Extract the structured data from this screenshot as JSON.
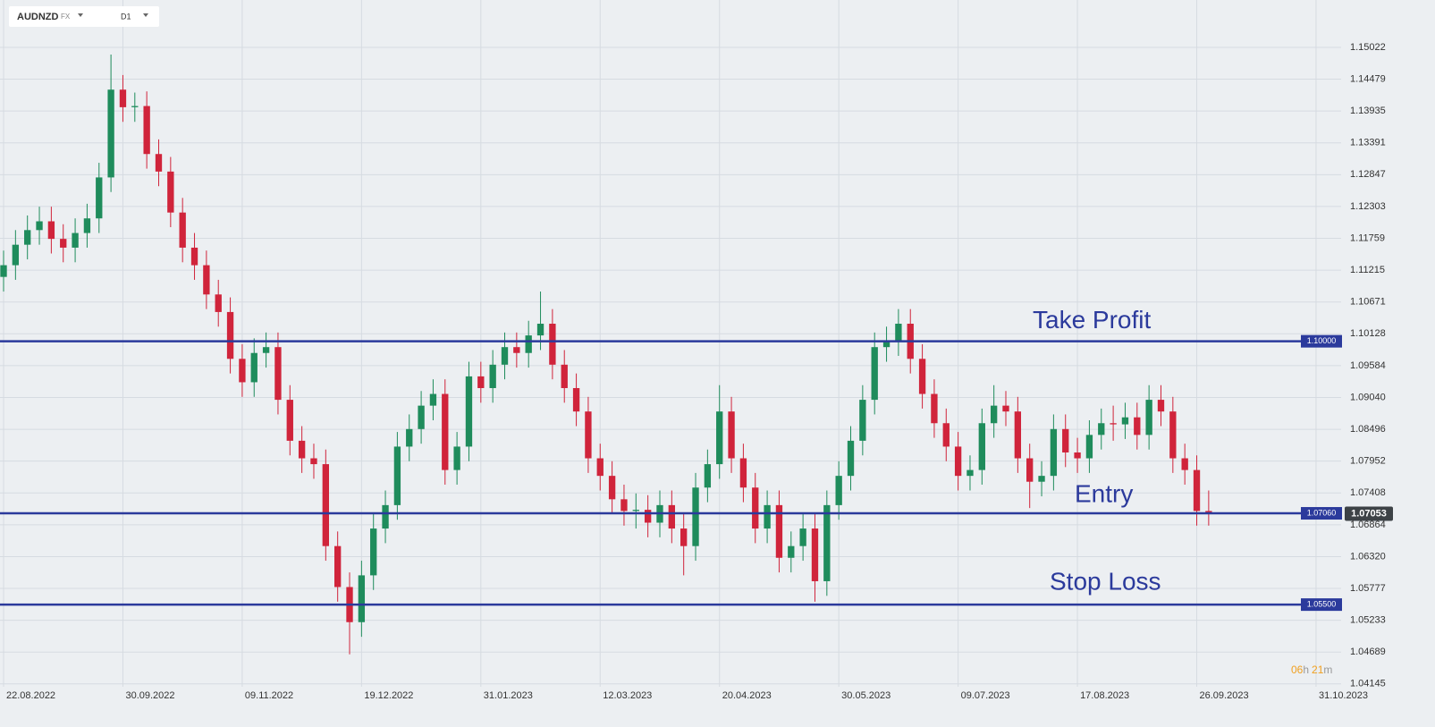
{
  "header": {
    "symbol": "AUDNZD",
    "market": "FX",
    "timeframe": "D1"
  },
  "countdown": {
    "hours": "06",
    "h": "h",
    "minutes": "21",
    "m": "m"
  },
  "chart_data": {
    "type": "candlestick",
    "up_color": "#1f8c5c",
    "down_color": "#d0243b",
    "grid": true,
    "ylim": [
      1.04096,
      1.15832
    ],
    "yticks": [
      1.15022,
      1.14479,
      1.13935,
      1.13391,
      1.12847,
      1.12303,
      1.11759,
      1.11215,
      1.10671,
      1.10128,
      1.09584,
      {
        "value": 1.0904,
        "label": "1.09040"
      },
      1.08496,
      1.07952,
      1.07408,
      1.06864,
      {
        "value": 1.0632,
        "label": "1.06320"
      },
      1.05777,
      1.05233,
      1.04689,
      1.04145
    ],
    "xlim": [
      -0.3,
      112.1
    ],
    "xticks": [
      {
        "value": 0,
        "label": "22.08.2022"
      },
      {
        "value": 10,
        "label": "30.09.2022"
      },
      {
        "value": 20,
        "label": "09.11.2022"
      },
      {
        "value": 30,
        "label": "19.12.2022"
      },
      {
        "value": 40,
        "label": "31.01.2023"
      },
      {
        "value": 50,
        "label": "12.03.2023"
      },
      {
        "value": 60,
        "label": "20.04.2023"
      },
      {
        "value": 70,
        "label": "30.05.2023"
      },
      {
        "value": 80,
        "label": "09.07.2023"
      },
      {
        "value": 90,
        "label": "17.08.2023"
      },
      {
        "value": 100,
        "label": "26.09.2023"
      },
      {
        "value": 110,
        "label": "31.10.2023"
      }
    ],
    "levels": [
      {
        "name": "Take Profit",
        "value": 1.1,
        "label": "1.10000",
        "color": "#2b3a9c"
      },
      {
        "name": "Entry",
        "value": 1.0706,
        "label": "1.07060",
        "color": "#2b3a9c"
      },
      {
        "name": "Stop Loss",
        "value": 1.055,
        "label": "1.05500",
        "color": "#2b3a9c"
      }
    ],
    "current_price": 1.07053,
    "candles": [
      [
        1.111,
        1.1155,
        1.1085,
        1.113
      ],
      [
        1.113,
        1.119,
        1.1105,
        1.1165
      ],
      [
        1.1165,
        1.1215,
        1.114,
        1.119
      ],
      [
        1.119,
        1.123,
        1.1165,
        1.1205
      ],
      [
        1.1205,
        1.123,
        1.115,
        1.1175
      ],
      [
        1.1175,
        1.12,
        1.1135,
        1.116
      ],
      [
        1.116,
        1.121,
        1.1135,
        1.1185
      ],
      [
        1.1185,
        1.1235,
        1.116,
        1.121
      ],
      [
        1.121,
        1.1305,
        1.1185,
        1.128
      ],
      [
        1.128,
        1.149,
        1.1255,
        1.143
      ],
      [
        1.143,
        1.1455,
        1.1375,
        1.14
      ],
      [
        1.14,
        1.1425,
        1.1375,
        1.1402
      ],
      [
        1.1402,
        1.1427,
        1.1295,
        1.132
      ],
      [
        1.132,
        1.1345,
        1.1265,
        1.129
      ],
      [
        1.129,
        1.1315,
        1.1195,
        1.122
      ],
      [
        1.122,
        1.1245,
        1.1135,
        1.116
      ],
      [
        1.116,
        1.1185,
        1.1105,
        1.113
      ],
      [
        1.113,
        1.1155,
        1.1055,
        1.108
      ],
      [
        1.108,
        1.1105,
        1.1025,
        1.105
      ],
      [
        1.105,
        1.1075,
        1.0945,
        1.097
      ],
      [
        1.097,
        1.0995,
        1.0905,
        1.093
      ],
      [
        1.093,
        1.1005,
        1.0905,
        1.098
      ],
      [
        1.098,
        1.1015,
        1.0955,
        1.099
      ],
      [
        1.099,
        1.1015,
        1.0875,
        1.09
      ],
      [
        1.09,
        1.0925,
        1.0805,
        1.083
      ],
      [
        1.083,
        1.0855,
        1.0775,
        1.08
      ],
      [
        1.08,
        1.0825,
        1.0765,
        1.079
      ],
      [
        1.079,
        1.0815,
        1.0625,
        1.065
      ],
      [
        1.065,
        1.0675,
        1.0555,
        1.058
      ],
      [
        1.058,
        1.0605,
        1.0465,
        1.052
      ],
      [
        1.052,
        1.0625,
        1.0495,
        1.06
      ],
      [
        1.06,
        1.0705,
        1.0575,
        1.068
      ],
      [
        1.068,
        1.0745,
        1.0655,
        1.072
      ],
      [
        1.072,
        1.0845,
        1.0695,
        1.082
      ],
      [
        1.082,
        1.0875,
        1.0795,
        1.085
      ],
      [
        1.085,
        1.0915,
        1.0825,
        1.089
      ],
      [
        1.089,
        1.0935,
        1.0865,
        1.091
      ],
      [
        1.091,
        1.0935,
        1.0755,
        1.078
      ],
      [
        1.078,
        1.0845,
        1.0755,
        1.082
      ],
      [
        1.082,
        1.0965,
        1.0795,
        1.094
      ],
      [
        1.094,
        1.0965,
        1.0895,
        1.092
      ],
      [
        1.092,
        1.0985,
        1.0895,
        1.096
      ],
      [
        1.096,
        1.1015,
        1.0935,
        1.099
      ],
      [
        1.099,
        1.1015,
        1.0955,
        1.098
      ],
      [
        1.098,
        1.1035,
        1.0955,
        1.101
      ],
      [
        1.101,
        1.1085,
        1.0985,
        1.103
      ],
      [
        1.103,
        1.1055,
        1.0935,
        1.096
      ],
      [
        1.096,
        1.0985,
        1.0895,
        1.092
      ],
      [
        1.092,
        1.0945,
        1.0855,
        1.088
      ],
      [
        1.088,
        1.0905,
        1.0775,
        1.08
      ],
      [
        1.08,
        1.0825,
        1.0745,
        1.077
      ],
      [
        1.077,
        1.0795,
        1.0705,
        1.073
      ],
      [
        1.073,
        1.0755,
        1.0685,
        1.071
      ],
      [
        1.071,
        1.074,
        1.068,
        1.0712
      ],
      [
        1.0712,
        1.0737,
        1.0665,
        1.069
      ],
      [
        1.069,
        1.0745,
        1.0665,
        1.072
      ],
      [
        1.072,
        1.0745,
        1.0655,
        1.068
      ],
      [
        1.068,
        1.0705,
        1.06,
        1.065
      ],
      [
        1.065,
        1.0775,
        1.0625,
        1.075
      ],
      [
        1.075,
        1.0815,
        1.0725,
        1.079
      ],
      [
        1.079,
        1.0925,
        1.0765,
        1.088
      ],
      [
        1.088,
        1.0905,
        1.0775,
        1.08
      ],
      [
        1.08,
        1.0825,
        1.0725,
        1.075
      ],
      [
        1.075,
        1.0775,
        1.0655,
        1.068
      ],
      [
        1.068,
        1.0745,
        1.0655,
        1.072
      ],
      [
        1.072,
        1.0745,
        1.0605,
        1.063
      ],
      [
        1.063,
        1.0675,
        1.0605,
        1.065
      ],
      [
        1.065,
        1.0705,
        1.0625,
        1.068
      ],
      [
        1.068,
        1.0705,
        1.0555,
        1.059
      ],
      [
        1.059,
        1.0745,
        1.0565,
        1.072
      ],
      [
        1.072,
        1.0795,
        1.0695,
        1.077
      ],
      [
        1.077,
        1.0855,
        1.0745,
        1.083
      ],
      [
        1.083,
        1.0925,
        1.0805,
        1.09
      ],
      [
        1.09,
        1.1015,
        1.0875,
        1.099
      ],
      [
        1.099,
        1.1025,
        1.0965,
        1.1
      ],
      [
        1.1,
        1.1055,
        1.0975,
        1.103
      ],
      [
        1.103,
        1.1055,
        1.0945,
        1.097
      ],
      [
        1.097,
        1.0995,
        1.0885,
        1.091
      ],
      [
        1.091,
        1.0935,
        1.0835,
        1.086
      ],
      [
        1.086,
        1.0885,
        1.0795,
        1.082
      ],
      [
        1.082,
        1.0845,
        1.0745,
        1.077
      ],
      [
        1.077,
        1.0805,
        1.0745,
        1.078
      ],
      [
        1.078,
        1.0885,
        1.0755,
        1.086
      ],
      [
        1.086,
        1.0925,
        1.0835,
        1.089
      ],
      [
        1.089,
        1.0915,
        1.0855,
        1.088
      ],
      [
        1.088,
        1.0905,
        1.0775,
        1.08
      ],
      [
        1.08,
        1.0825,
        1.0715,
        1.076
      ],
      [
        1.076,
        1.0795,
        1.0735,
        1.077
      ],
      [
        1.077,
        1.0875,
        1.0745,
        1.085
      ],
      [
        1.085,
        1.0875,
        1.0785,
        1.081
      ],
      [
        1.081,
        1.0835,
        1.0775,
        1.08
      ],
      [
        1.08,
        1.0865,
        1.0775,
        1.084
      ],
      [
        1.084,
        1.0885,
        1.0815,
        1.086
      ],
      [
        1.086,
        1.089,
        1.083,
        1.0858
      ],
      [
        1.0858,
        1.0895,
        1.0833,
        1.087
      ],
      [
        1.087,
        1.0895,
        1.0815,
        1.084
      ],
      [
        1.084,
        1.0925,
        1.0815,
        1.09
      ],
      [
        1.09,
        1.0925,
        1.0855,
        1.088
      ],
      [
        1.088,
        1.0905,
        1.0775,
        1.08
      ],
      [
        1.08,
        1.0825,
        1.0755,
        1.078
      ],
      [
        1.078,
        1.0805,
        1.0685,
        1.071
      ],
      [
        1.071,
        1.0745,
        1.0685,
        1.07053
      ]
    ]
  }
}
